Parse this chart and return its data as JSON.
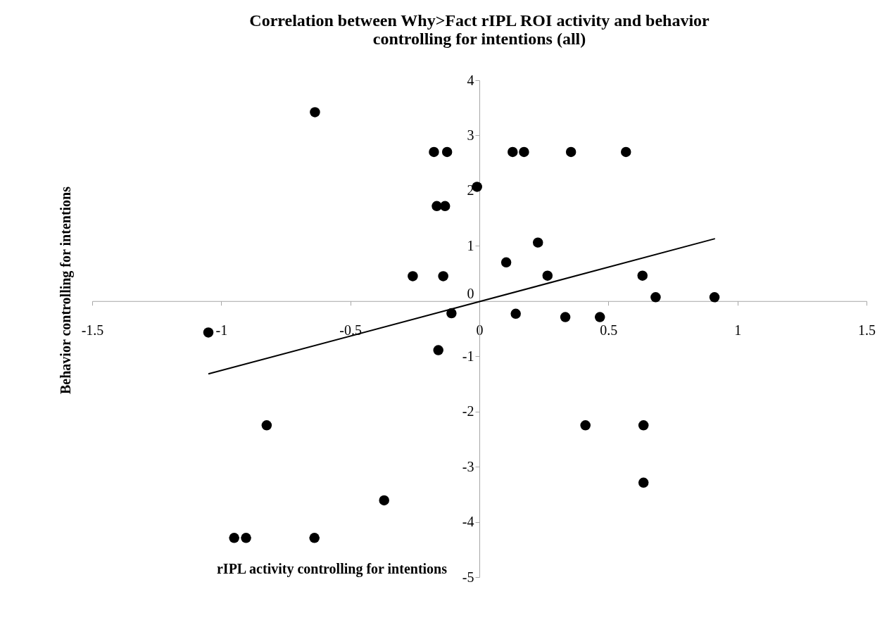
{
  "chart_data": {
    "type": "scatter",
    "title": [
      "Correlation between Why>Fact rIPL ROI activity and behavior",
      "controlling for intentions (all)"
    ],
    "xlabel": "rIPL activity controlling for intentions",
    "ylabel": "Behavior controlling for intentions",
    "xlim": [
      -1.5,
      1.5
    ],
    "xticks": [
      -1.5,
      -1,
      -0.5,
      0,
      0.5,
      1,
      1.5
    ],
    "ylim": [
      -5,
      4
    ],
    "yticks": [
      -5,
      -4,
      -3,
      -2,
      -1,
      0,
      1,
      2,
      3,
      4
    ],
    "grid": false,
    "marker": "circle",
    "series": [
      {
        "color": "#000000",
        "x": [
          -0.637,
          -0.176,
          -0.125,
          -0.009,
          -0.165,
          -0.133,
          -0.258,
          -0.14,
          -0.108,
          -1.05,
          -0.159,
          0.129,
          0.173,
          0.355,
          0.568,
          0.227,
          0.104,
          0.264,
          0.632,
          0.683,
          0.911,
          0.141,
          0.333,
          0.467,
          -0.824,
          -0.369,
          -0.95,
          -0.904,
          -0.639,
          0.411,
          0.636,
          0.636
        ],
        "values": [
          3.42,
          2.7,
          2.7,
          2.07,
          1.72,
          1.72,
          0.45,
          0.45,
          -0.22,
          -0.57,
          -0.89,
          2.7,
          2.7,
          2.7,
          2.7,
          1.06,
          0.7,
          0.46,
          0.46,
          0.07,
          0.07,
          -0.23,
          -0.29,
          -0.29,
          -2.25,
          -3.61,
          -4.29,
          -4.29,
          -4.29,
          -2.25,
          -2.25,
          -3.29
        ]
      },
      {
        "type": "line",
        "color": "#000000",
        "line_style": "solid",
        "marker": "none",
        "x": [
          -1.05,
          0.913
        ],
        "values": [
          -1.32,
          1.13
        ]
      }
    ]
  }
}
